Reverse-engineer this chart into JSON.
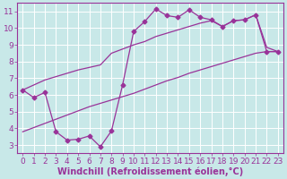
{
  "title": "",
  "xlabel": "Windchill (Refroidissement éolien,°C)",
  "ylabel": "",
  "bg_color": "#c8e8e8",
  "grid_color": "#ffffff",
  "line_color": "#993399",
  "xlim": [
    -0.5,
    23.5
  ],
  "ylim": [
    2.5,
    11.5
  ],
  "xticks": [
    0,
    1,
    2,
    3,
    4,
    5,
    6,
    7,
    8,
    9,
    10,
    11,
    12,
    13,
    14,
    15,
    16,
    17,
    18,
    19,
    20,
    21,
    22,
    23
  ],
  "yticks": [
    3,
    4,
    5,
    6,
    7,
    8,
    9,
    10,
    11
  ],
  "line_main_x": [
    0,
    1,
    2,
    3,
    4,
    5,
    6,
    7,
    8,
    9,
    10,
    11,
    12,
    13,
    14,
    15,
    16,
    17,
    18,
    19,
    20,
    21,
    22,
    23
  ],
  "line_main_y": [
    6.3,
    5.85,
    6.15,
    3.8,
    3.3,
    3.35,
    3.55,
    2.9,
    3.85,
    6.6,
    9.8,
    10.4,
    11.15,
    10.75,
    10.65,
    11.1,
    10.65,
    10.5,
    10.1,
    10.45,
    10.5,
    10.8,
    8.6,
    8.6
  ],
  "line_upper_x": [
    0,
    1,
    2,
    3,
    4,
    5,
    6,
    7,
    8,
    9,
    10,
    11,
    12,
    13,
    14,
    15,
    16,
    17,
    18,
    19,
    20,
    21,
    22,
    23
  ],
  "line_upper_y": [
    6.3,
    6.6,
    6.9,
    7.1,
    7.3,
    7.5,
    7.65,
    7.8,
    8.5,
    8.75,
    9.0,
    9.2,
    9.5,
    9.7,
    9.9,
    10.1,
    10.3,
    10.45,
    10.1,
    10.45,
    10.5,
    10.8,
    8.85,
    8.6
  ],
  "line_lower_x": [
    0,
    1,
    2,
    3,
    4,
    5,
    6,
    7,
    8,
    9,
    10,
    11,
    12,
    13,
    14,
    15,
    16,
    17,
    18,
    19,
    20,
    21,
    22,
    23
  ],
  "line_lower_y": [
    3.8,
    4.05,
    4.3,
    4.55,
    4.8,
    5.05,
    5.3,
    5.5,
    5.7,
    5.9,
    6.1,
    6.35,
    6.6,
    6.85,
    7.05,
    7.3,
    7.5,
    7.7,
    7.9,
    8.1,
    8.3,
    8.5,
    8.6,
    8.6
  ],
  "xlabel_color": "#993399",
  "xlabel_fontsize": 7,
  "tick_color": "#993399",
  "tick_fontsize": 6.5
}
